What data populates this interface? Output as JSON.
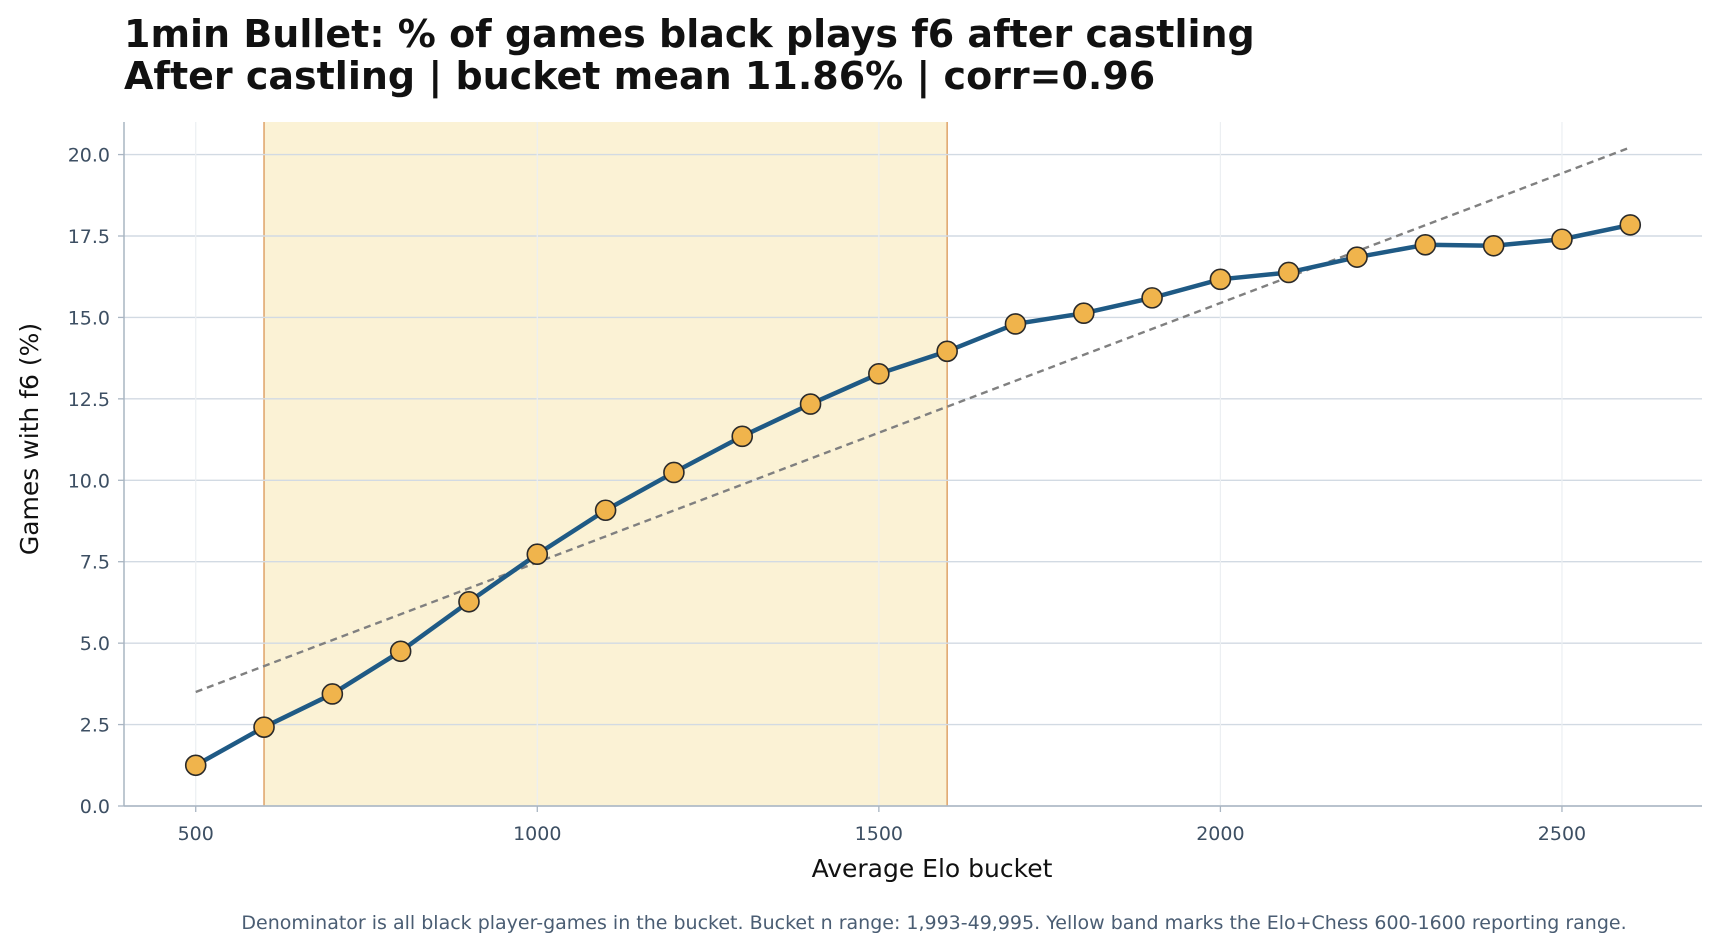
{
  "chart_data": {
    "type": "line",
    "title": "1min Bullet: % of games black plays f6 after castling",
    "subtitle": "After castling | bucket mean 11.86% | corr=0.96",
    "xlabel": "Average Elo bucket",
    "ylabel": "Games with f6 (%)",
    "xlim": [
      395,
      2705
    ],
    "ylim": [
      0,
      21
    ],
    "xticks": [
      500,
      1000,
      1500,
      2000,
      2500
    ],
    "xtick_labels": [
      "500",
      "1000",
      "1500",
      "2000",
      "2500"
    ],
    "yticks": [
      0,
      2.5,
      5,
      7.5,
      10,
      12.5,
      15,
      17.5,
      20
    ],
    "ytick_labels": [
      "0.0",
      "2.5",
      "5.0",
      "7.5",
      "10.0",
      "12.5",
      "15.0",
      "17.5",
      "20.0"
    ],
    "grid": true,
    "x": [
      500,
      600,
      700,
      800,
      900,
      1000,
      1100,
      1200,
      1300,
      1400,
      1500,
      1600,
      1700,
      1800,
      1900,
      2000,
      2100,
      2200,
      2300,
      2400,
      2500,
      2600
    ],
    "series": [
      {
        "values": [
          1.25,
          2.42,
          3.44,
          4.75,
          6.27,
          7.73,
          9.08,
          10.24,
          11.35,
          12.34,
          13.27,
          13.96,
          14.8,
          15.13,
          15.6,
          16.17,
          16.38,
          16.85,
          17.23,
          17.2,
          17.4,
          17.84
        ],
        "color": "#1f5a85",
        "marker_color": "#f0b44c"
      }
    ],
    "trendline": {
      "x": [
        500,
        2600
      ],
      "y": [
        3.5,
        20.22
      ],
      "color": "#808080",
      "style": "dashed"
    },
    "band": {
      "x": [
        600,
        1600
      ],
      "fill": "#fbf2d5",
      "edge": "#e0a870"
    },
    "footnote": "Denominator is all black player-games in the bucket. Bucket n range: 1,993-49,995. Yellow band marks the Elo+Chess 600-1600 reporting range."
  }
}
